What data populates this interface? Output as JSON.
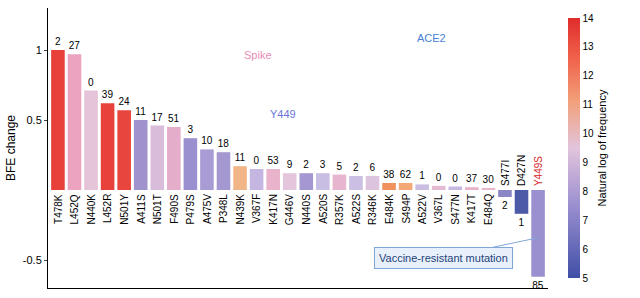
{
  "chart_data": {
    "type": "bar",
    "y_label": "BFE change",
    "categories": [
      "T478K",
      "L452Q",
      "N440K",
      "L452R",
      "N501Y",
      "A411S",
      "N501T",
      "F490S",
      "P479S",
      "A475V",
      "P348L",
      "N439K",
      "V367F",
      "K417N",
      "G446V",
      "N440S",
      "A520S",
      "R357K",
      "A522S",
      "R346K",
      "E484K",
      "S494P",
      "A522V",
      "V367L",
      "S477N",
      "K417T",
      "E484Q",
      "S477I",
      "D427N",
      "Y449S"
    ],
    "values": [
      1.0,
      0.97,
      0.71,
      0.62,
      0.57,
      0.5,
      0.46,
      0.45,
      0.37,
      0.29,
      0.27,
      0.17,
      0.15,
      0.15,
      0.12,
      0.12,
      0.12,
      0.11,
      0.1,
      0.1,
      0.05,
      0.05,
      0.04,
      0.03,
      0.025,
      0.02,
      0.015,
      -0.05,
      -0.17,
      -0.62
    ],
    "counts": [
      2,
      27,
      0,
      39,
      24,
      11,
      17,
      51,
      3,
      10,
      18,
      11,
      0,
      53,
      9,
      2,
      3,
      5,
      2,
      6,
      38,
      62,
      1,
      0,
      0,
      37,
      30,
      2,
      1,
      85
    ],
    "colors": [
      "#e8403a",
      "#eba3c0",
      "#e5c3d9",
      "#e8403a",
      "#e8453d",
      "#a092cc",
      "#d9bcd9",
      "#e4adc9",
      "#9b90cf",
      "#a99bd3",
      "#a597cf",
      "#f2b588",
      "#c4b6e0",
      "#e9b3cb",
      "#e3c6dc",
      "#a597d2",
      "#c8bde2",
      "#e7b5cd",
      "#cbc0e3",
      "#dcc3de",
      "#f0925e",
      "#f3a676",
      "#c9bde2",
      "#e4bad2",
      "#c5b9e2",
      "#e9b0c8",
      "#e8b6cd",
      "#8a86c6",
      "#4d5aa8",
      "#9b90cf"
    ],
    "ylim": [
      -0.7,
      1.3
    ],
    "yticks": [
      -0.5,
      0.5,
      1
    ],
    "colorbar": {
      "title": "Natural log of frequency",
      "range": [
        5,
        14
      ],
      "ticks": [
        5,
        6,
        7,
        8,
        9,
        10,
        11,
        12,
        13,
        14
      ]
    },
    "annotations": [
      {
        "text": "Vaccine-resistant mutation",
        "category": "Y449S",
        "color": "#d62728"
      }
    ],
    "inset_labels": [
      {
        "text": "Spike",
        "color": "#e58bb5"
      },
      {
        "text": "ACE2",
        "color": "#4a7fd6"
      },
      {
        "text": "Y449",
        "color": "#6a74d8"
      }
    ]
  }
}
